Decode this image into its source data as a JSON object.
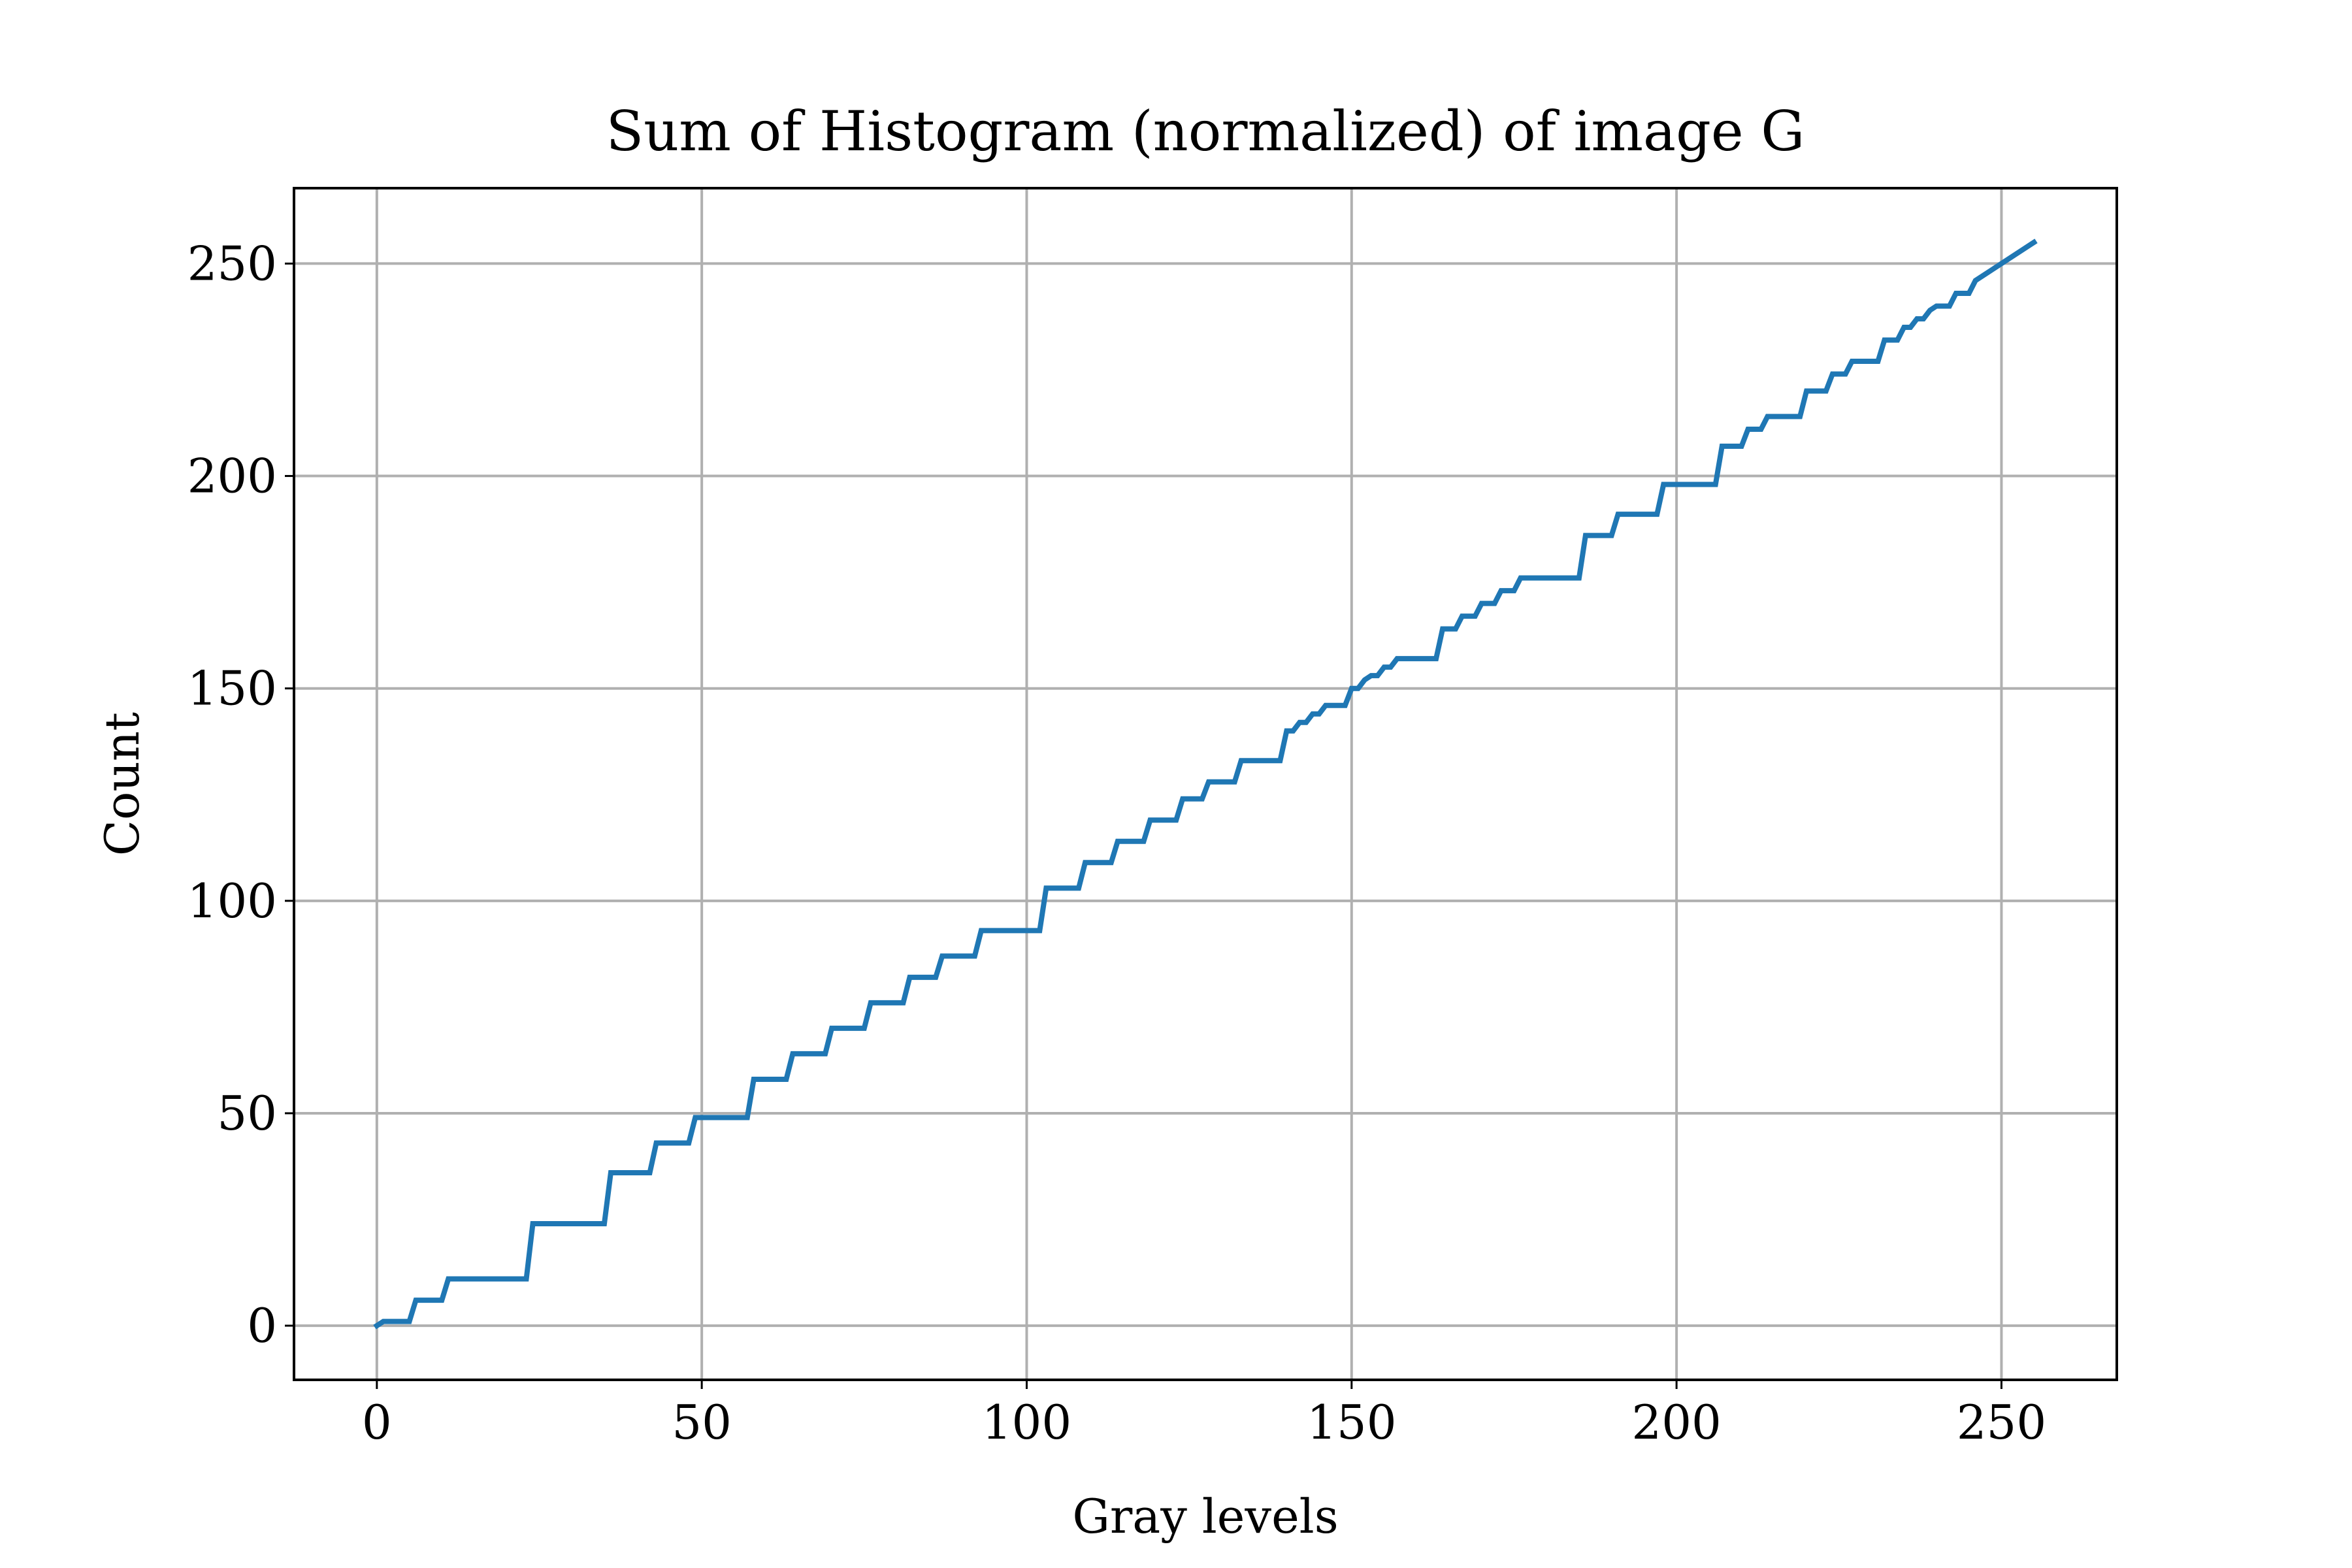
{
  "chart_data": {
    "type": "line",
    "title": "Sum of Histogram (normalized) of image G",
    "xlabel": "Gray levels",
    "ylabel": "Count",
    "xlim": [
      -12.75,
      267.75
    ],
    "ylim": [
      -12.75,
      267.75
    ],
    "xticks": [
      0,
      50,
      100,
      150,
      200,
      250
    ],
    "yticks": [
      0,
      50,
      100,
      150,
      200,
      250
    ],
    "grid": true,
    "legend": "none",
    "series": [
      {
        "color": "#1f77b4",
        "points": [
          [
            0,
            0
          ],
          [
            1,
            1
          ],
          [
            5,
            1
          ],
          [
            6,
            6
          ],
          [
            10,
            6
          ],
          [
            11,
            11
          ],
          [
            23,
            11
          ],
          [
            24,
            24
          ],
          [
            35,
            24
          ],
          [
            36,
            36
          ],
          [
            42,
            36
          ],
          [
            43,
            43
          ],
          [
            48,
            43
          ],
          [
            49,
            49
          ],
          [
            57,
            49
          ],
          [
            58,
            58
          ],
          [
            63,
            58
          ],
          [
            64,
            64
          ],
          [
            69,
            64
          ],
          [
            70,
            70
          ],
          [
            75,
            70
          ],
          [
            76,
            76
          ],
          [
            81,
            76
          ],
          [
            82,
            82
          ],
          [
            86,
            82
          ],
          [
            87,
            87
          ],
          [
            92,
            87
          ],
          [
            93,
            93
          ],
          [
            102,
            93
          ],
          [
            103,
            103
          ],
          [
            108,
            103
          ],
          [
            109,
            109
          ],
          [
            113,
            109
          ],
          [
            114,
            114
          ],
          [
            118,
            114
          ],
          [
            119,
            119
          ],
          [
            123,
            119
          ],
          [
            124,
            124
          ],
          [
            127,
            124
          ],
          [
            128,
            128
          ],
          [
            132,
            128
          ],
          [
            133,
            133
          ],
          [
            139,
            133
          ],
          [
            140,
            140
          ],
          [
            141,
            140
          ],
          [
            142,
            142
          ],
          [
            143,
            142
          ],
          [
            144,
            144
          ],
          [
            145,
            144
          ],
          [
            146,
            146
          ],
          [
            149,
            146
          ],
          [
            150,
            150
          ],
          [
            151,
            150
          ],
          [
            152,
            152
          ],
          [
            153,
            153
          ],
          [
            154,
            153
          ],
          [
            155,
            155
          ],
          [
            156,
            155
          ],
          [
            157,
            157
          ],
          [
            163,
            157
          ],
          [
            164,
            164
          ],
          [
            166,
            164
          ],
          [
            167,
            167
          ],
          [
            169,
            167
          ],
          [
            170,
            170
          ],
          [
            172,
            170
          ],
          [
            173,
            173
          ],
          [
            175,
            173
          ],
          [
            176,
            176
          ],
          [
            185,
            176
          ],
          [
            186,
            186
          ],
          [
            190,
            186
          ],
          [
            191,
            191
          ],
          [
            197,
            191
          ],
          [
            198,
            198
          ],
          [
            206,
            198
          ],
          [
            207,
            207
          ],
          [
            210,
            207
          ],
          [
            211,
            211
          ],
          [
            213,
            211
          ],
          [
            214,
            214
          ],
          [
            219,
            214
          ],
          [
            220,
            220
          ],
          [
            223,
            220
          ],
          [
            224,
            224
          ],
          [
            226,
            224
          ],
          [
            227,
            227
          ],
          [
            231,
            227
          ],
          [
            232,
            232
          ],
          [
            234,
            232
          ],
          [
            235,
            235
          ],
          [
            236,
            235
          ],
          [
            237,
            237
          ],
          [
            238,
            237
          ],
          [
            239,
            239
          ],
          [
            240,
            240
          ],
          [
            242,
            240
          ],
          [
            243,
            243
          ],
          [
            245,
            243
          ],
          [
            246,
            246
          ],
          [
            255,
            255
          ]
        ]
      }
    ],
    "style": {
      "line_color": "#1f77b4",
      "grid_color": "#b0b0b0",
      "axes_color": "#000000",
      "background": "#ffffff"
    }
  }
}
